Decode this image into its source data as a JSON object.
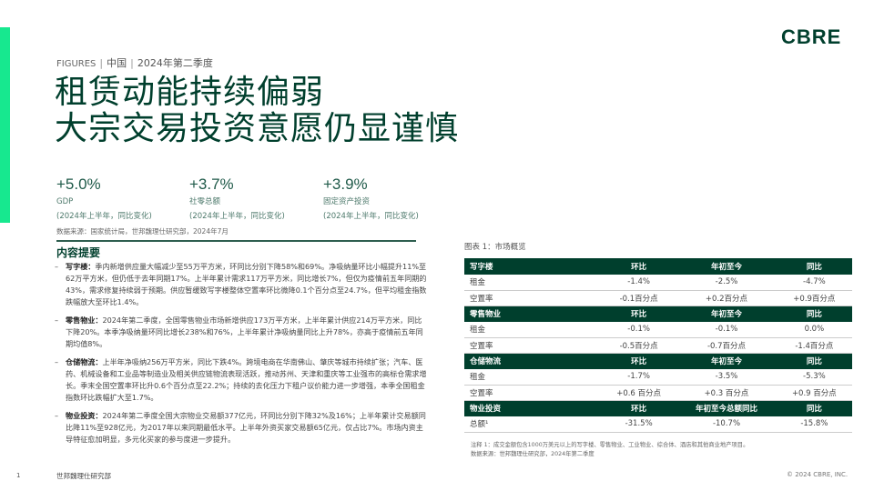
{
  "header": {
    "kicker_label": "FIGURES",
    "region": "中国",
    "period": "2024年第二季度",
    "logo": "CBRE",
    "title_lines": [
      "租赁动能持续偏弱",
      "大宗交易投资意愿仍显谨慎"
    ]
  },
  "colors": {
    "brand_green": "#003f2d",
    "accent_green": "#17e88f"
  },
  "stats": [
    {
      "value": "+5.0%",
      "label": "GDP",
      "note": "(2024年上半年，同比变化)"
    },
    {
      "value": "+3.7%",
      "label": "社零总额",
      "note": "(2024年上半年，同比变化)"
    },
    {
      "value": "+3.9%",
      "label": "固定资产投资",
      "note": "(2024年上半年，同比变化)"
    }
  ],
  "stats_source": "数据来源：国家统计局，世邦魏理仕研究部，2024年7月",
  "summary": {
    "heading": "内容提要",
    "bullets": [
      {
        "title": "写字楼：",
        "text": "季内新增供应量大幅减少至55万平方米，环同比分别下降58%和69%。净吸纳量环比小幅提升11%至62万平方米，但仍低于去年同期17%。上半年累计需求117万平方米，同比增长7%，但仅为疫情前五年同期的43%，需求修复持续弱于预期。供应暂缓致写字楼整体空置率环比微降0.1个百分点至24.7%，但平均租金指数跌幅放大至环比1.4%。"
      },
      {
        "title": "零售物业：",
        "text": "2024年第二季度，全国零售物业市场新增供应173万平方米，上半年累计供应214万平方米，同比下降20%。本季净吸纳量环同比增长238%和76%，上半年累计净吸纳量同比上升78%，亦高于疫情前五年同期均值8%。"
      },
      {
        "title": "仓储物流：",
        "text": "上半年净吸纳256万平方米，同比下跌4%。跨境电商在华南佛山、肇庆等城市持续扩张；汽车、医药、机械设备和工业品等制造业及相关供应链物流表现活跃，推动苏州、天津和重庆等工业强市的高标仓需求增长。季末全国空置率环比升0.6个百分点至22.2%；持续的去化压力下租户议价能力进一步增强，本季全国租金指数环比跌幅扩大至1.7%。"
      },
      {
        "title": "物业投资：",
        "text": "2024年第二季度全国大宗物业交易额377亿元，环同比分别下降32%及16%；上半年累计交易额同比降11%至928亿元，为2017年以来同期最低水平。上半年外资买家交易额65亿元，仅占比7%。市场内资主导特征愈加明显，多元化买家的参与度进一步提升。"
      }
    ]
  },
  "table": {
    "caption": "图表 1：市场概览",
    "sections": [
      {
        "header": [
          "写字楼",
          "环比",
          "年初至今",
          "同比"
        ],
        "rows": [
          [
            "租金",
            "-1.4%",
            "-2.5%",
            "-4.7%"
          ],
          [
            "空置率",
            "-0.1百分点",
            "+0.2百分点",
            "+0.9百分点"
          ]
        ]
      },
      {
        "header": [
          "零售物业",
          "环比",
          "年初至今",
          "同比"
        ],
        "rows": [
          [
            "租金",
            "-0.1%",
            "-0.1%",
            "0.0%"
          ],
          [
            "空置率",
            "-0.5百分点",
            "-0.7百分点",
            "-1.4百分点"
          ]
        ]
      },
      {
        "header": [
          "仓储物流",
          "环比",
          "年初至今",
          "同比"
        ],
        "rows": [
          [
            "租金",
            "-1.7%",
            "-3.5%",
            "-5.3%"
          ],
          [
            "空置率",
            "+0.6 百分点",
            "+0.3 百分点",
            "+0.9 百分点"
          ]
        ]
      },
      {
        "header": [
          "物业投资",
          "环比",
          "年初至今总额同比",
          "同比"
        ],
        "rows": [
          [
            "总额¹",
            "-31.5%",
            "-10.7%",
            "-15.8%"
          ]
        ]
      }
    ],
    "note": "注释 1：成交金额包含1000万美元以上的写字楼、零售物业、工业物业、综合体、酒店和其他商业地产项目。",
    "source": "数据来源：世邦魏理仕研究部，2024年第二季度"
  },
  "footer": {
    "page": "1",
    "org": "世邦魏理仕研究部",
    "copyright": "© 2024 CBRE, INC."
  }
}
